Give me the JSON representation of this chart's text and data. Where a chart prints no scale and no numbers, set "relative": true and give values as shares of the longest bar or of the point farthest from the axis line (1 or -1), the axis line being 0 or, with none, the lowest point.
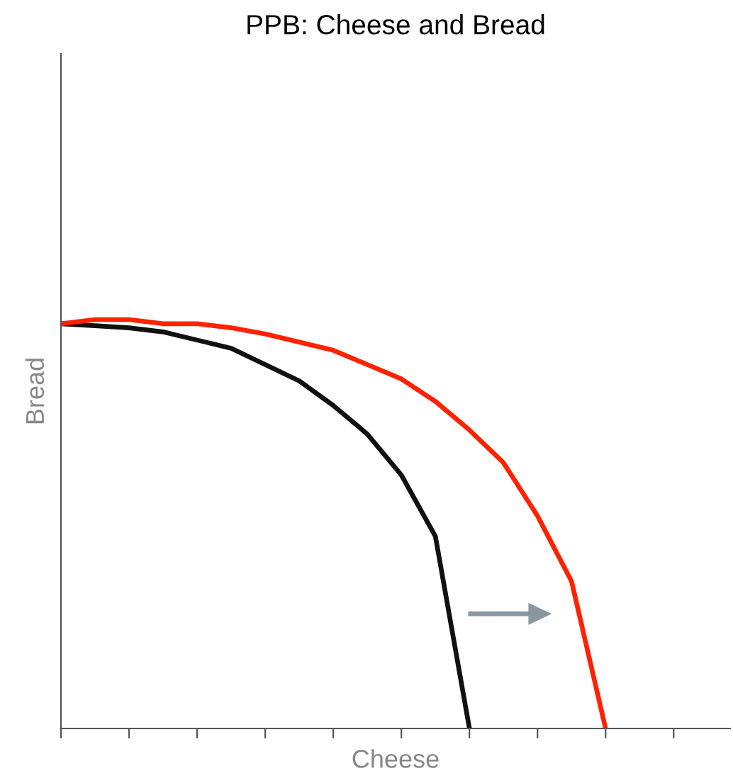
{
  "chart_data": {
    "type": "line",
    "title": "PPB: Cheese and Bread",
    "xlabel": "Cheese",
    "ylabel": "Bread",
    "relative": true,
    "categories": [
      null,
      null,
      null,
      null,
      null,
      null,
      null,
      null,
      null,
      null,
      null,
      null,
      null,
      null,
      null,
      null,
      null,
      null,
      null,
      null
    ],
    "series": [
      {
        "color": "#111111",
        "values": [
          0.99,
          0.985,
          0.98,
          0.97,
          0.95,
          0.93,
          0.89,
          0.85,
          0.79,
          0.72,
          0.62,
          0.47,
          0,
          null,
          null,
          null,
          null,
          null,
          null,
          null
        ]
      },
      {
        "color": "#ff2200",
        "values": [
          0.99,
          1.0,
          1.0,
          0.99,
          0.99,
          0.98,
          0.965,
          0.945,
          0.925,
          0.89,
          0.855,
          0.8,
          0.73,
          0.65,
          0.52,
          0.36,
          0,
          null,
          null,
          null
        ]
      }
    ],
    "grid": false,
    "legend": false,
    "marker": "none",
    "line_style": "solid"
  }
}
